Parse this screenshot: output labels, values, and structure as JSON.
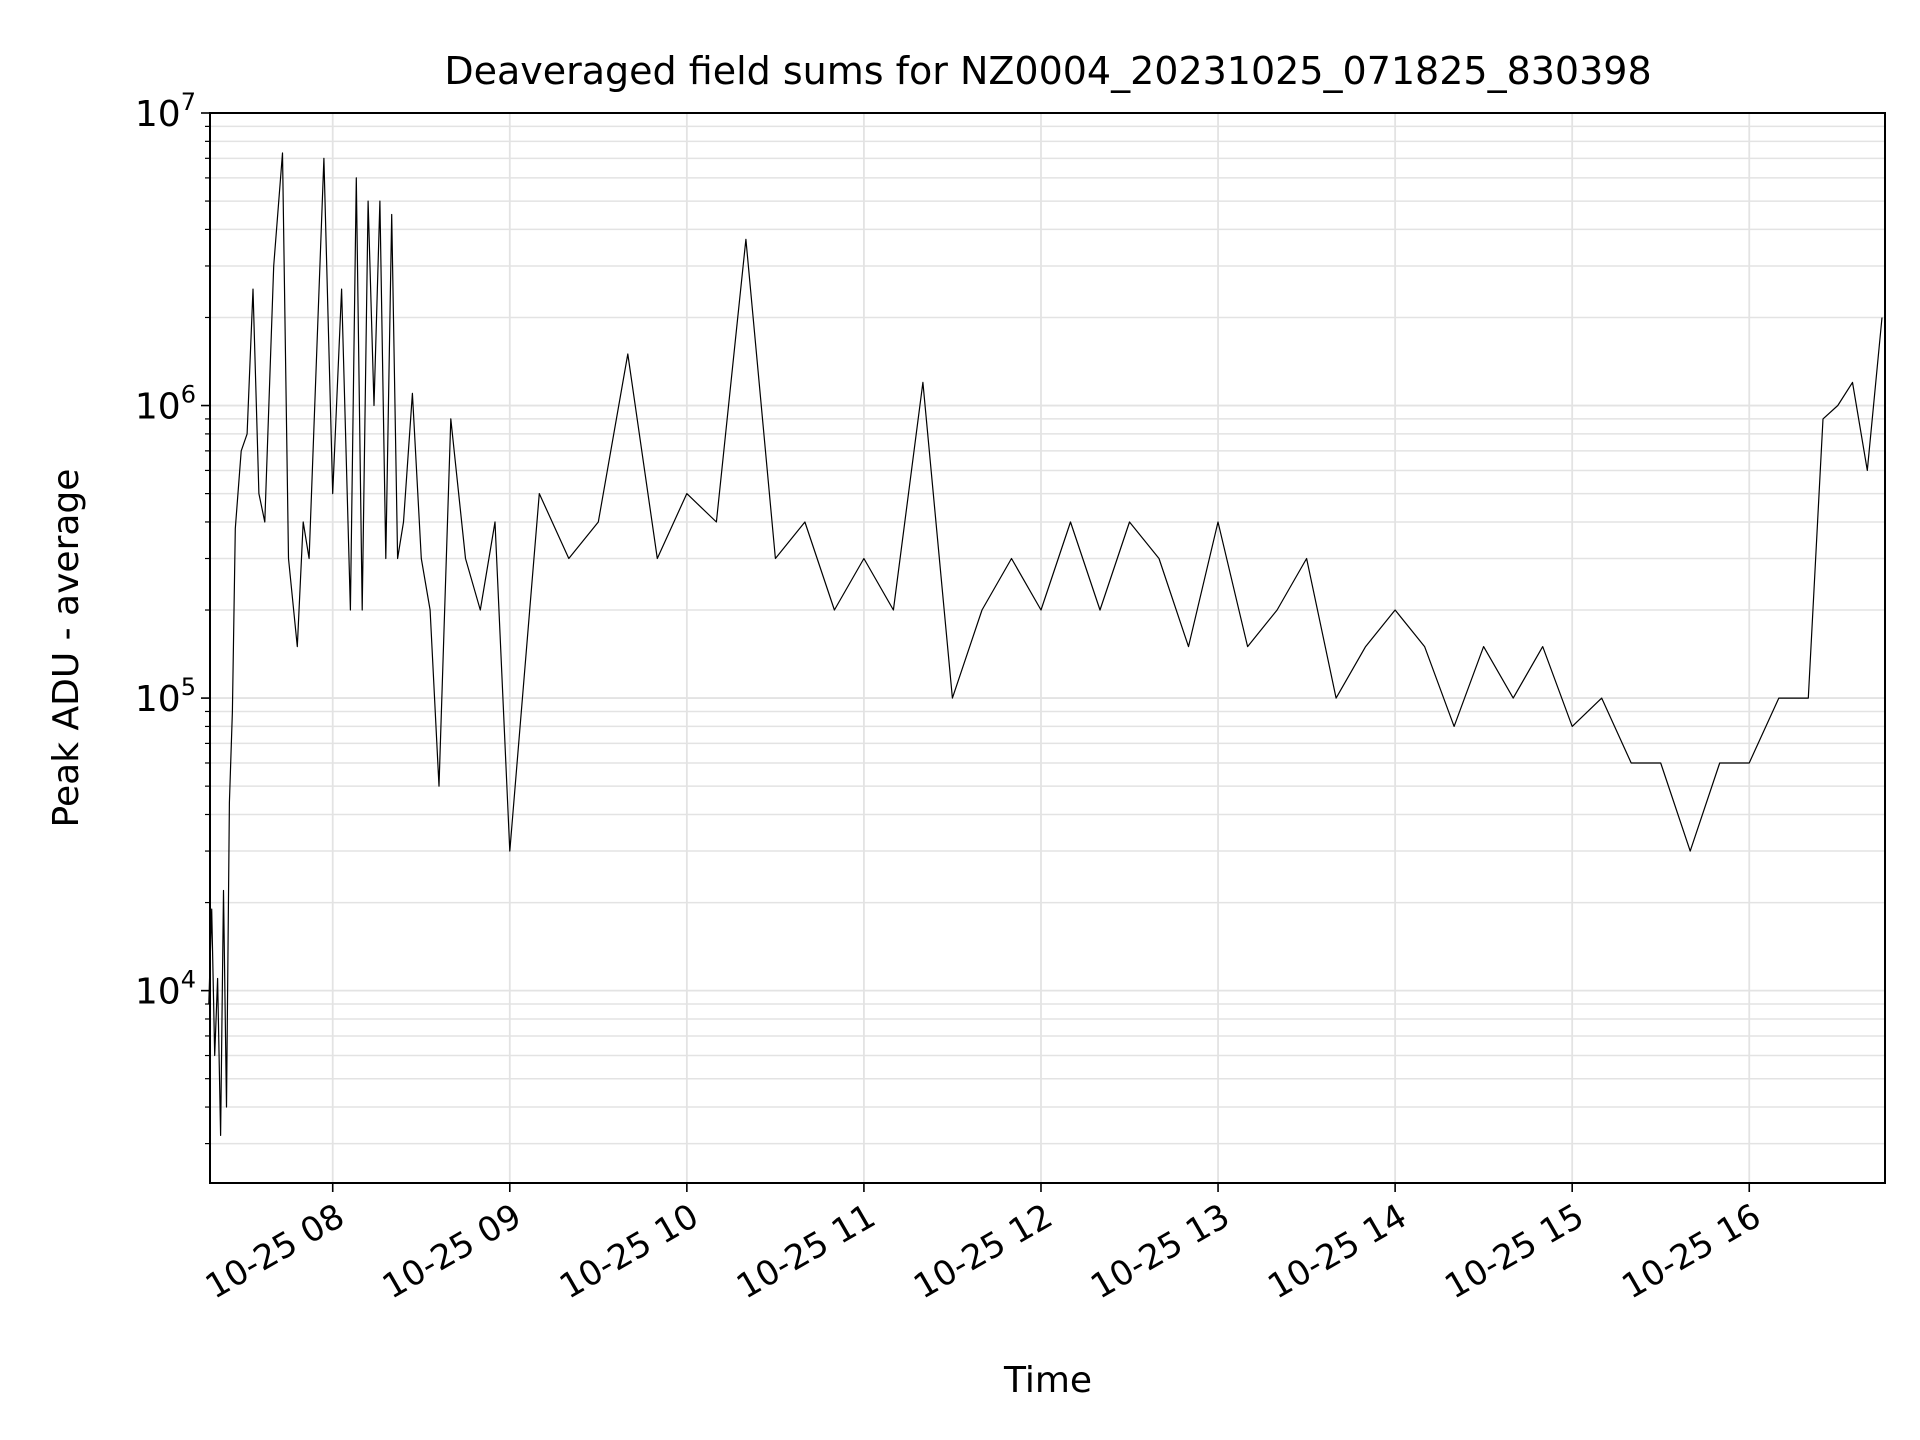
{
  "chart_data": {
    "type": "line",
    "title": "Deaveraged field sums for NZ0004_20231025_071825_830398",
    "xlabel": "Time",
    "ylabel": "Peak ADU - average",
    "yscale": "log",
    "grid": "major and minor",
    "legend": "none",
    "xlim": [
      "2023-10-25 07:18:25",
      "2023-10-25 16:46:00"
    ],
    "ylim": [
      2200,
      10000000
    ],
    "x_tick_labels": [
      {
        "label": "10-25 08",
        "value": "2023-10-25 08:00"
      },
      {
        "label": "10-25 09",
        "value": "2023-10-25 09:00"
      },
      {
        "label": "10-25 10",
        "value": "2023-10-25 10:00"
      },
      {
        "label": "10-25 11",
        "value": "2023-10-25 11:00"
      },
      {
        "label": "10-25 12",
        "value": "2023-10-25 12:00"
      },
      {
        "label": "10-25 13",
        "value": "2023-10-25 13:00"
      },
      {
        "label": "10-25 14",
        "value": "2023-10-25 14:00"
      },
      {
        "label": "10-25 15",
        "value": "2023-10-25 15:00"
      },
      {
        "label": "10-25 16",
        "value": "2023-10-25 16:00"
      }
    ],
    "y_tick_labels": [
      {
        "base": "10",
        "exp": "4",
        "value": 10000
      },
      {
        "base": "10",
        "exp": "5",
        "value": 100000
      },
      {
        "base": "10",
        "exp": "6",
        "value": 1000000
      },
      {
        "base": "10",
        "exp": "7",
        "value": 10000000
      }
    ],
    "series": [
      {
        "color": "#000000",
        "x": [
          "2023-10-25 07:18",
          "2023-10-25 07:19",
          "2023-10-25 07:20",
          "2023-10-25 07:21",
          "2023-10-25 07:22",
          "2023-10-25 07:23",
          "2023-10-25 07:24",
          "2023-10-25 07:25",
          "2023-10-25 07:26",
          "2023-10-25 07:27",
          "2023-10-25 07:29",
          "2023-10-25 07:31",
          "2023-10-25 07:33",
          "2023-10-25 07:35",
          "2023-10-25 07:37",
          "2023-10-25 07:40",
          "2023-10-25 07:43",
          "2023-10-25 07:45",
          "2023-10-25 07:48",
          "2023-10-25 07:50",
          "2023-10-25 07:52",
          "2023-10-25 07:55",
          "2023-10-25 07:57",
          "2023-10-25 08:00",
          "2023-10-25 08:03",
          "2023-10-25 08:06",
          "2023-10-25 08:08",
          "2023-10-25 08:10",
          "2023-10-25 08:12",
          "2023-10-25 08:14",
          "2023-10-25 08:16",
          "2023-10-25 08:18",
          "2023-10-25 08:20",
          "2023-10-25 08:22",
          "2023-10-25 08:24",
          "2023-10-25 08:27",
          "2023-10-25 08:30",
          "2023-10-25 08:33",
          "2023-10-25 08:36",
          "2023-10-25 08:40",
          "2023-10-25 08:45",
          "2023-10-25 08:50",
          "2023-10-25 08:55",
          "2023-10-25 09:00",
          "2023-10-25 09:10",
          "2023-10-25 09:20",
          "2023-10-25 09:30",
          "2023-10-25 09:40",
          "2023-10-25 09:50",
          "2023-10-25 10:00",
          "2023-10-25 10:10",
          "2023-10-25 10:20",
          "2023-10-25 10:30",
          "2023-10-25 10:40",
          "2023-10-25 10:50",
          "2023-10-25 11:00",
          "2023-10-25 11:10",
          "2023-10-25 11:20",
          "2023-10-25 11:30",
          "2023-10-25 11:40",
          "2023-10-25 11:50",
          "2023-10-25 12:00",
          "2023-10-25 12:10",
          "2023-10-25 12:20",
          "2023-10-25 12:30",
          "2023-10-25 12:40",
          "2023-10-25 12:50",
          "2023-10-25 13:00",
          "2023-10-25 13:10",
          "2023-10-25 13:20",
          "2023-10-25 13:30",
          "2023-10-25 13:40",
          "2023-10-25 13:50",
          "2023-10-25 14:00",
          "2023-10-25 14:10",
          "2023-10-25 14:20",
          "2023-10-25 14:30",
          "2023-10-25 14:40",
          "2023-10-25 14:50",
          "2023-10-25 15:00",
          "2023-10-25 15:10",
          "2023-10-25 15:20",
          "2023-10-25 15:30",
          "2023-10-25 15:40",
          "2023-10-25 15:50",
          "2023-10-25 16:00",
          "2023-10-25 16:10",
          "2023-10-25 16:20",
          "2023-10-25 16:25",
          "2023-10-25 16:30",
          "2023-10-25 16:35",
          "2023-10-25 16:40",
          "2023-10-25 16:45"
        ],
        "values": [
          9000,
          19000,
          6000,
          11000,
          3200,
          22000,
          4000,
          44000,
          90000,
          380000,
          700000,
          800000,
          2500000,
          500000,
          400000,
          3000000,
          7300000,
          300000,
          150000,
          400000,
          300000,
          2000000,
          7000000,
          500000,
          2500000,
          200000,
          6000000,
          200000,
          5000000,
          1000000,
          5000000,
          300000,
          4500000,
          300000,
          400000,
          1100000,
          300000,
          200000,
          50000,
          900000,
          300000,
          200000,
          400000,
          30000,
          500000,
          300000,
          400000,
          1500000,
          300000,
          500000,
          400000,
          3700000,
          300000,
          400000,
          200000,
          300000,
          200000,
          1200000,
          100000,
          200000,
          300000,
          200000,
          400000,
          200000,
          400000,
          300000,
          150000,
          400000,
          150000,
          200000,
          300000,
          100000,
          150000,
          200000,
          150000,
          80000,
          150000,
          100000,
          150000,
          80000,
          100000,
          60000,
          60000,
          30000,
          60000,
          60000,
          100000,
          100000,
          900000,
          1000000,
          1200000,
          600000,
          2000000
        ]
      }
    ]
  }
}
